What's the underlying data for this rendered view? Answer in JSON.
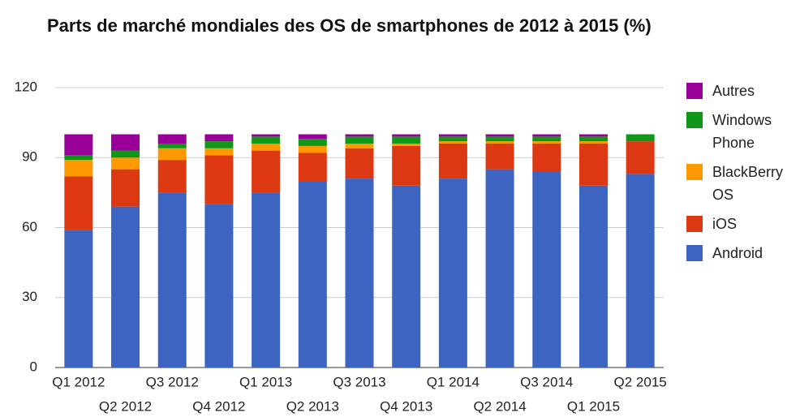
{
  "chart_data": {
    "type": "stacked_bar",
    "title": "Parts de marché mondiales des OS de smartphones de 2012 à 2015 (%)",
    "categories": [
      "Q1 2012",
      "Q2 2012",
      "Q3 2012",
      "Q4 2012",
      "Q1 2013",
      "Q2 2013",
      "Q3 2013",
      "Q4 2013",
      "Q1 2014",
      "Q2 2014",
      "Q3 2014",
      "Q1 2015",
      "Q2 2015"
    ],
    "series": [
      {
        "name": "Android",
        "color": "#3d64c0",
        "values": [
          59,
          69,
          75,
          70,
          75,
          80,
          81,
          78,
          81,
          85,
          84,
          78,
          83
        ]
      },
      {
        "name": "iOS",
        "color": "#dc3912",
        "values": [
          23,
          16,
          14,
          21,
          18,
          12,
          13,
          17,
          15,
          11,
          12,
          18,
          14
        ]
      },
      {
        "name": "BlackBerry OS",
        "color": "#ff9900",
        "values": [
          7,
          5,
          5,
          3,
          3,
          3,
          2,
          1,
          1,
          1,
          1,
          1,
          0
        ]
      },
      {
        "name": "Windows Phone",
        "color": "#109618",
        "values": [
          2,
          3,
          2,
          3,
          3,
          3,
          3,
          3,
          2,
          2,
          2,
          2,
          3
        ]
      },
      {
        "name": "Autres",
        "color": "#990099",
        "values": [
          9,
          7,
          4,
          3,
          1,
          2,
          1,
          1,
          1,
          1,
          1,
          1,
          0
        ]
      }
    ],
    "ylim": [
      0,
      120
    ],
    "yticks": [
      0,
      30,
      60,
      90,
      120
    ],
    "grid": true,
    "legend": "right"
  }
}
